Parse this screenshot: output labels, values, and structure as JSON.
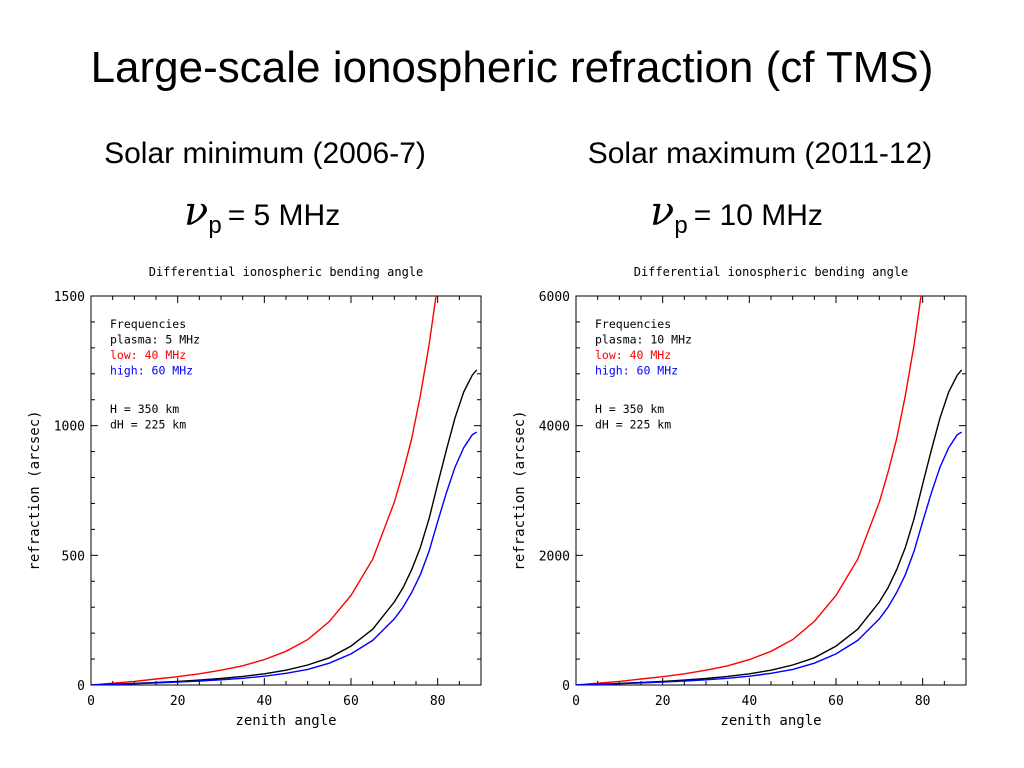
{
  "slide": {
    "title": "Large-scale ionospheric refraction  (cf TMS)",
    "left_subtitle": "Solar minimum (2006-7)",
    "right_subtitle": "Solar maximum (2011-12)",
    "left_freq_symbol": "ν",
    "left_freq_sub": "p",
    "left_freq_value": "= 5 MHz",
    "right_freq_symbol": "ν",
    "right_freq_sub": "p",
    "right_freq_value": "= 10 MHz"
  },
  "colors": {
    "low": "#ff0000",
    "plasma": "#000000",
    "high": "#0000ff"
  },
  "chart_data": [
    {
      "type": "line",
      "title": "Differential ionospheric bending angle",
      "xlabel": "zenith angle",
      "ylabel": "refraction (arcsec)",
      "xlim": [
        0,
        90
      ],
      "ylim": [
        0,
        1500
      ],
      "xticks": [
        0,
        20,
        40,
        60,
        80
      ],
      "yticks": [
        0,
        500,
        1000,
        1500
      ],
      "legend_lines": [
        "Frequencies",
        "plasma:  5 MHz",
        "low:  40 MHz",
        "high:  60 MHz"
      ],
      "annotations": [
        "H = 350 km",
        "dH = 225 km"
      ],
      "x": [
        0,
        5,
        10,
        15,
        20,
        25,
        30,
        35,
        40,
        45,
        50,
        55,
        60,
        65,
        70,
        72,
        74,
        76,
        78,
        80,
        82,
        84,
        86,
        88,
        89
      ],
      "series": [
        {
          "name": "low:  40 MHz",
          "color": "#ff0000",
          "values": [
            0,
            7,
            14,
            23,
            32,
            43,
            57,
            74,
            98,
            130,
            175,
            245,
            345,
            485,
            705,
            820,
            950,
            1115,
            1310,
            1545,
            null,
            null,
            null,
            null,
            null
          ]
        },
        {
          "name": "plasma:  5 MHz",
          "color": "#000000",
          "values": [
            0,
            3,
            6,
            10,
            14,
            19,
            25,
            33,
            43,
            57,
            77,
            105,
            150,
            215,
            320,
            375,
            445,
            530,
            640,
            775,
            905,
            1030,
            1130,
            1195,
            1215
          ]
        },
        {
          "name": "high:  60 MHz",
          "color": "#0000ff",
          "values": [
            0,
            2,
            5,
            8,
            11,
            15,
            20,
            26,
            34,
            45,
            60,
            84,
            120,
            172,
            255,
            300,
            357,
            425,
            515,
            630,
            740,
            840,
            915,
            965,
            975
          ]
        }
      ]
    },
    {
      "type": "line",
      "title": "Differential ionospheric bending angle",
      "xlabel": "zenith angle",
      "ylabel": "refraction (arcsec)",
      "xlim": [
        0,
        90
      ],
      "ylim": [
        0,
        6000
      ],
      "xticks": [
        0,
        20,
        40,
        60,
        80
      ],
      "yticks": [
        0,
        2000,
        4000,
        6000
      ],
      "legend_lines": [
        "Frequencies",
        "plasma:  10 MHz",
        "low:  40 MHz",
        "high:  60 MHz"
      ],
      "annotations": [
        "H = 350 km",
        "dH = 225 km"
      ],
      "x": [
        0,
        5,
        10,
        15,
        20,
        25,
        30,
        35,
        40,
        45,
        50,
        55,
        60,
        65,
        70,
        72,
        74,
        76,
        78,
        80,
        82,
        84,
        86,
        88,
        89
      ],
      "series": [
        {
          "name": "low:  40 MHz",
          "color": "#ff0000",
          "values": [
            0,
            28,
            56,
            92,
            128,
            172,
            228,
            296,
            392,
            520,
            700,
            980,
            1380,
            1940,
            2820,
            3280,
            3800,
            4460,
            5240,
            6180,
            null,
            null,
            null,
            null,
            null
          ]
        },
        {
          "name": "plasma:  10 MHz",
          "color": "#000000",
          "values": [
            0,
            12,
            24,
            40,
            56,
            76,
            100,
            132,
            172,
            228,
            308,
            420,
            600,
            860,
            1280,
            1500,
            1780,
            2120,
            2560,
            3100,
            3620,
            4120,
            4520,
            4780,
            4860
          ]
        },
        {
          "name": "high:  60 MHz",
          "color": "#0000ff",
          "values": [
            0,
            8,
            20,
            32,
            44,
            60,
            80,
            104,
            136,
            180,
            240,
            336,
            480,
            688,
            1020,
            1200,
            1428,
            1700,
            2060,
            2520,
            2960,
            3360,
            3660,
            3860,
            3900
          ]
        }
      ]
    }
  ]
}
